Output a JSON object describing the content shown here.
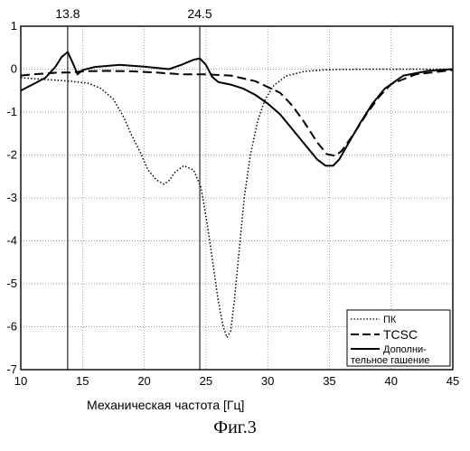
{
  "chart_data": {
    "type": "line",
    "title": "",
    "xlabel": "Механическая частота  [Гц]",
    "ylabel": "",
    "xlim": [
      10,
      45
    ],
    "ylim": [
      -7,
      1
    ],
    "xticks": [
      "10",
      "15",
      "20",
      "25",
      "30",
      "35",
      "40",
      "45"
    ],
    "yticks": [
      "1",
      "0",
      "-1",
      "-2",
      "-3",
      "-4",
      "-5",
      "-6",
      "-7"
    ],
    "grid": true,
    "legend_position": "bottom-right",
    "vertical_markers": [
      {
        "x": 13.8,
        "label": "13.8"
      },
      {
        "x": 24.5,
        "label": "24.5"
      }
    ],
    "series": [
      {
        "name": "ПК",
        "style": "dotted",
        "x": [
          10,
          12,
          14,
          15.5,
          16.5,
          17.5,
          18.3,
          19,
          19.7,
          20.3,
          21,
          21.6,
          22,
          22.5,
          23.2,
          24,
          24.6,
          25.1,
          25.6,
          26,
          26.4,
          26.7,
          27,
          27.3,
          27.7,
          28.1,
          28.6,
          29.2,
          29.8,
          30.5,
          31.5,
          33,
          35,
          38,
          42,
          45
        ],
        "y": [
          -0.2,
          -0.24,
          -0.28,
          -0.33,
          -0.45,
          -0.7,
          -1.1,
          -1.55,
          -1.95,
          -2.35,
          -2.58,
          -2.68,
          -2.6,
          -2.4,
          -2.25,
          -2.35,
          -2.75,
          -3.6,
          -4.6,
          -5.4,
          -6.0,
          -6.25,
          -6.1,
          -5.4,
          -4.2,
          -3.0,
          -2.0,
          -1.2,
          -0.7,
          -0.38,
          -0.16,
          -0.05,
          -0.01,
          0,
          0,
          0
        ]
      },
      {
        "name": "TCSC",
        "style": "dashed",
        "x": [
          10,
          11,
          12,
          13,
          14,
          15,
          17,
          19,
          21,
          23,
          25,
          27,
          29,
          31,
          32,
          33,
          34,
          34.8,
          35.5,
          36,
          37,
          38,
          39,
          40,
          42,
          45
        ],
        "y": [
          -0.15,
          -0.12,
          -0.1,
          -0.08,
          -0.08,
          -0.05,
          -0.04,
          -0.05,
          -0.08,
          -0.12,
          -0.12,
          -0.15,
          -0.28,
          -0.55,
          -0.85,
          -1.25,
          -1.7,
          -1.98,
          -2.02,
          -1.9,
          -1.5,
          -1.05,
          -0.65,
          -0.35,
          -0.12,
          -0.02
        ]
      },
      {
        "name": "Дополни-тельное гашение",
        "style": "solid",
        "x": [
          10,
          11,
          12,
          12.8,
          13.3,
          13.8,
          14.2,
          14.6,
          15,
          16,
          18,
          20,
          22,
          23,
          24,
          24.5,
          25,
          25.5,
          26,
          27,
          28,
          29,
          30,
          31,
          32,
          33,
          34,
          34.7,
          35.3,
          35.8,
          36.5,
          37.5,
          38.5,
          39.5,
          41,
          43,
          45
        ],
        "y": [
          -0.5,
          -0.35,
          -0.2,
          0.05,
          0.28,
          0.4,
          0.15,
          -0.12,
          -0.02,
          0.05,
          0.1,
          0.06,
          0.0,
          0.1,
          0.22,
          0.25,
          0.1,
          -0.18,
          -0.3,
          -0.36,
          -0.45,
          -0.6,
          -0.8,
          -1.05,
          -1.4,
          -1.75,
          -2.1,
          -2.25,
          -2.25,
          -2.1,
          -1.75,
          -1.25,
          -0.8,
          -0.45,
          -0.15,
          -0.04,
          0
        ]
      }
    ]
  },
  "legend": {
    "items": [
      "ПК",
      "TCSC",
      "Дополни-",
      "тельное гашение"
    ]
  },
  "caption": "Фиг.3"
}
